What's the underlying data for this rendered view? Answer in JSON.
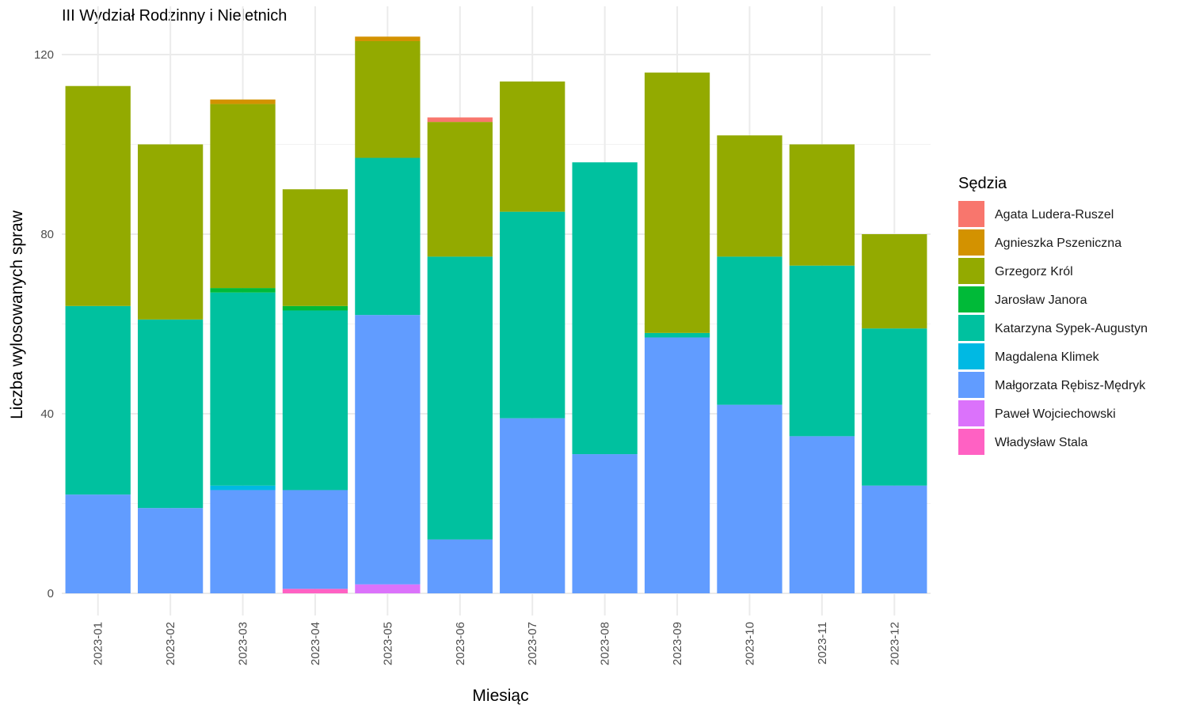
{
  "chart_data": {
    "type": "bar",
    "stacked": true,
    "title": "III Wydział Rodzinny i Nieletnich",
    "xlabel": "Miesiąc",
    "ylabel": "Liczba wylosowanych spraw",
    "ylim": [
      -4,
      125
    ],
    "yticks": [
      0,
      40,
      80,
      120
    ],
    "grid": true,
    "legend_title": "Sędzia",
    "legend_position": "right",
    "categories": [
      "2023-01",
      "2023-02",
      "2023-03",
      "2023-04",
      "2023-05",
      "2023-06",
      "2023-07",
      "2023-08",
      "2023-09",
      "2023-10",
      "2023-11",
      "2023-12"
    ],
    "series": [
      {
        "name": "Agata Ludera-Ruszel",
        "color": "#F8766D",
        "values": [
          0,
          0,
          0,
          0,
          0,
          1,
          0,
          0,
          0,
          0,
          0,
          0
        ]
      },
      {
        "name": "Agnieszka Pszeniczna",
        "color": "#D39200",
        "values": [
          0,
          0,
          1,
          0,
          1,
          0,
          0,
          0,
          0,
          0,
          0,
          0
        ]
      },
      {
        "name": "Grzegorz Król",
        "color": "#93AA00",
        "values": [
          49,
          39,
          41,
          26,
          26,
          30,
          29,
          0,
          58,
          27,
          27,
          21
        ]
      },
      {
        "name": "Jarosław Janora",
        "color": "#00BA38",
        "values": [
          0,
          0,
          1,
          1,
          0,
          0,
          0,
          0,
          0,
          0,
          0,
          0
        ]
      },
      {
        "name": "Katarzyna Sypek-Augustyn",
        "color": "#00C19F",
        "values": [
          42,
          42,
          43,
          40,
          35,
          63,
          46,
          65,
          1,
          33,
          38,
          35
        ]
      },
      {
        "name": "Magdalena Klimek",
        "color": "#00B9E3",
        "values": [
          0,
          0,
          1,
          0,
          0,
          0,
          0,
          0,
          0,
          0,
          0,
          0
        ]
      },
      {
        "name": "Małgorzata Rębisz-Mędryk",
        "color": "#619CFF",
        "values": [
          22,
          19,
          23,
          22,
          60,
          12,
          39,
          31,
          57,
          42,
          35,
          24
        ]
      },
      {
        "name": "Paweł Wojciechowski",
        "color": "#DB72FB",
        "values": [
          0,
          0,
          0,
          0,
          2,
          0,
          0,
          0,
          0,
          0,
          0,
          0
        ]
      },
      {
        "name": "Władysław Stala",
        "color": "#FF61C3",
        "values": [
          0,
          0,
          0,
          1,
          0,
          0,
          0,
          0,
          0,
          0,
          0,
          0
        ]
      }
    ]
  }
}
